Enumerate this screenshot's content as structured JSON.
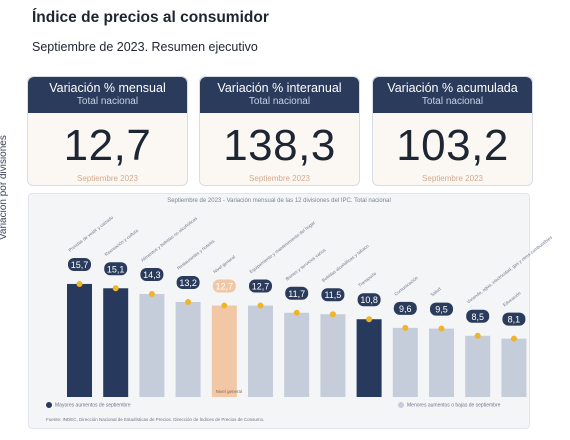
{
  "header": {
    "title": "Índice de precios al consumidor",
    "subtitle": "Septiembre de 2023. Resumen ejecutivo"
  },
  "cards": [
    {
      "title": "Variación % mensual",
      "subtitle": "Total nacional",
      "value": "12,7",
      "footer": "Septiembre 2023"
    },
    {
      "title": "Variación % interanual",
      "subtitle": "Total nacional",
      "value": "138,3",
      "footer": "Septiembre 2023"
    },
    {
      "title": "Variación % acumulada",
      "subtitle": "Total nacional",
      "value": "103,2",
      "footer": "Septiembre 2023"
    }
  ],
  "colors": {
    "header_navy": "#2b3b5c",
    "bar_highlight": "#27395c",
    "bar_default": "#c5cdda",
    "bar_general": "#f2c7a6",
    "dot_gold": "#f0b429",
    "label_navy": "#2b3b5c",
    "label_general": "#f2c7a6"
  },
  "chart_data": {
    "type": "bar",
    "title": "Septiembre de 2023 - Variación mensual de las 12 divisiones del IPC. Total nacional",
    "ylabel": "Variación por divisiones",
    "categories": [
      "Prendas de vestir y calzado",
      "Recreación y cultura",
      "Alimentos y bebidas no alcohólicas",
      "Restaurantes y hoteles",
      "Nivel general",
      "Equipamiento y mantenimiento del hogar",
      "Bienes y servicios varios",
      "Bebidas alcohólicas y tabaco",
      "Transporte",
      "Comunicación",
      "Salud",
      "Vivienda, agua, electricidad, gas y otros combustibles",
      "Educación"
    ],
    "values": [
      15.7,
      15.1,
      14.3,
      13.2,
      12.7,
      12.7,
      11.7,
      11.5,
      10.8,
      9.6,
      9.5,
      8.5,
      8.1
    ],
    "value_labels": [
      "15,7",
      "15,1",
      "14,3",
      "13,2",
      "12,7",
      "12,7",
      "11,7",
      "11,5",
      "10,8",
      "9,6",
      "9,5",
      "8,5",
      "8,1"
    ],
    "highlight": [
      true,
      true,
      false,
      false,
      false,
      false,
      false,
      false,
      true,
      false,
      false,
      false,
      false
    ],
    "general_index": 4,
    "general_bar_text": "Nivel general",
    "legend_left": "Mayores aumentos de septiembre",
    "legend_right": "Menores aumentos o bajas de septiembre",
    "source": "Fuente: INDEC, Dirección Nacional de Estadísticas de Precios. Dirección de Índices de Precios de Consumo."
  }
}
